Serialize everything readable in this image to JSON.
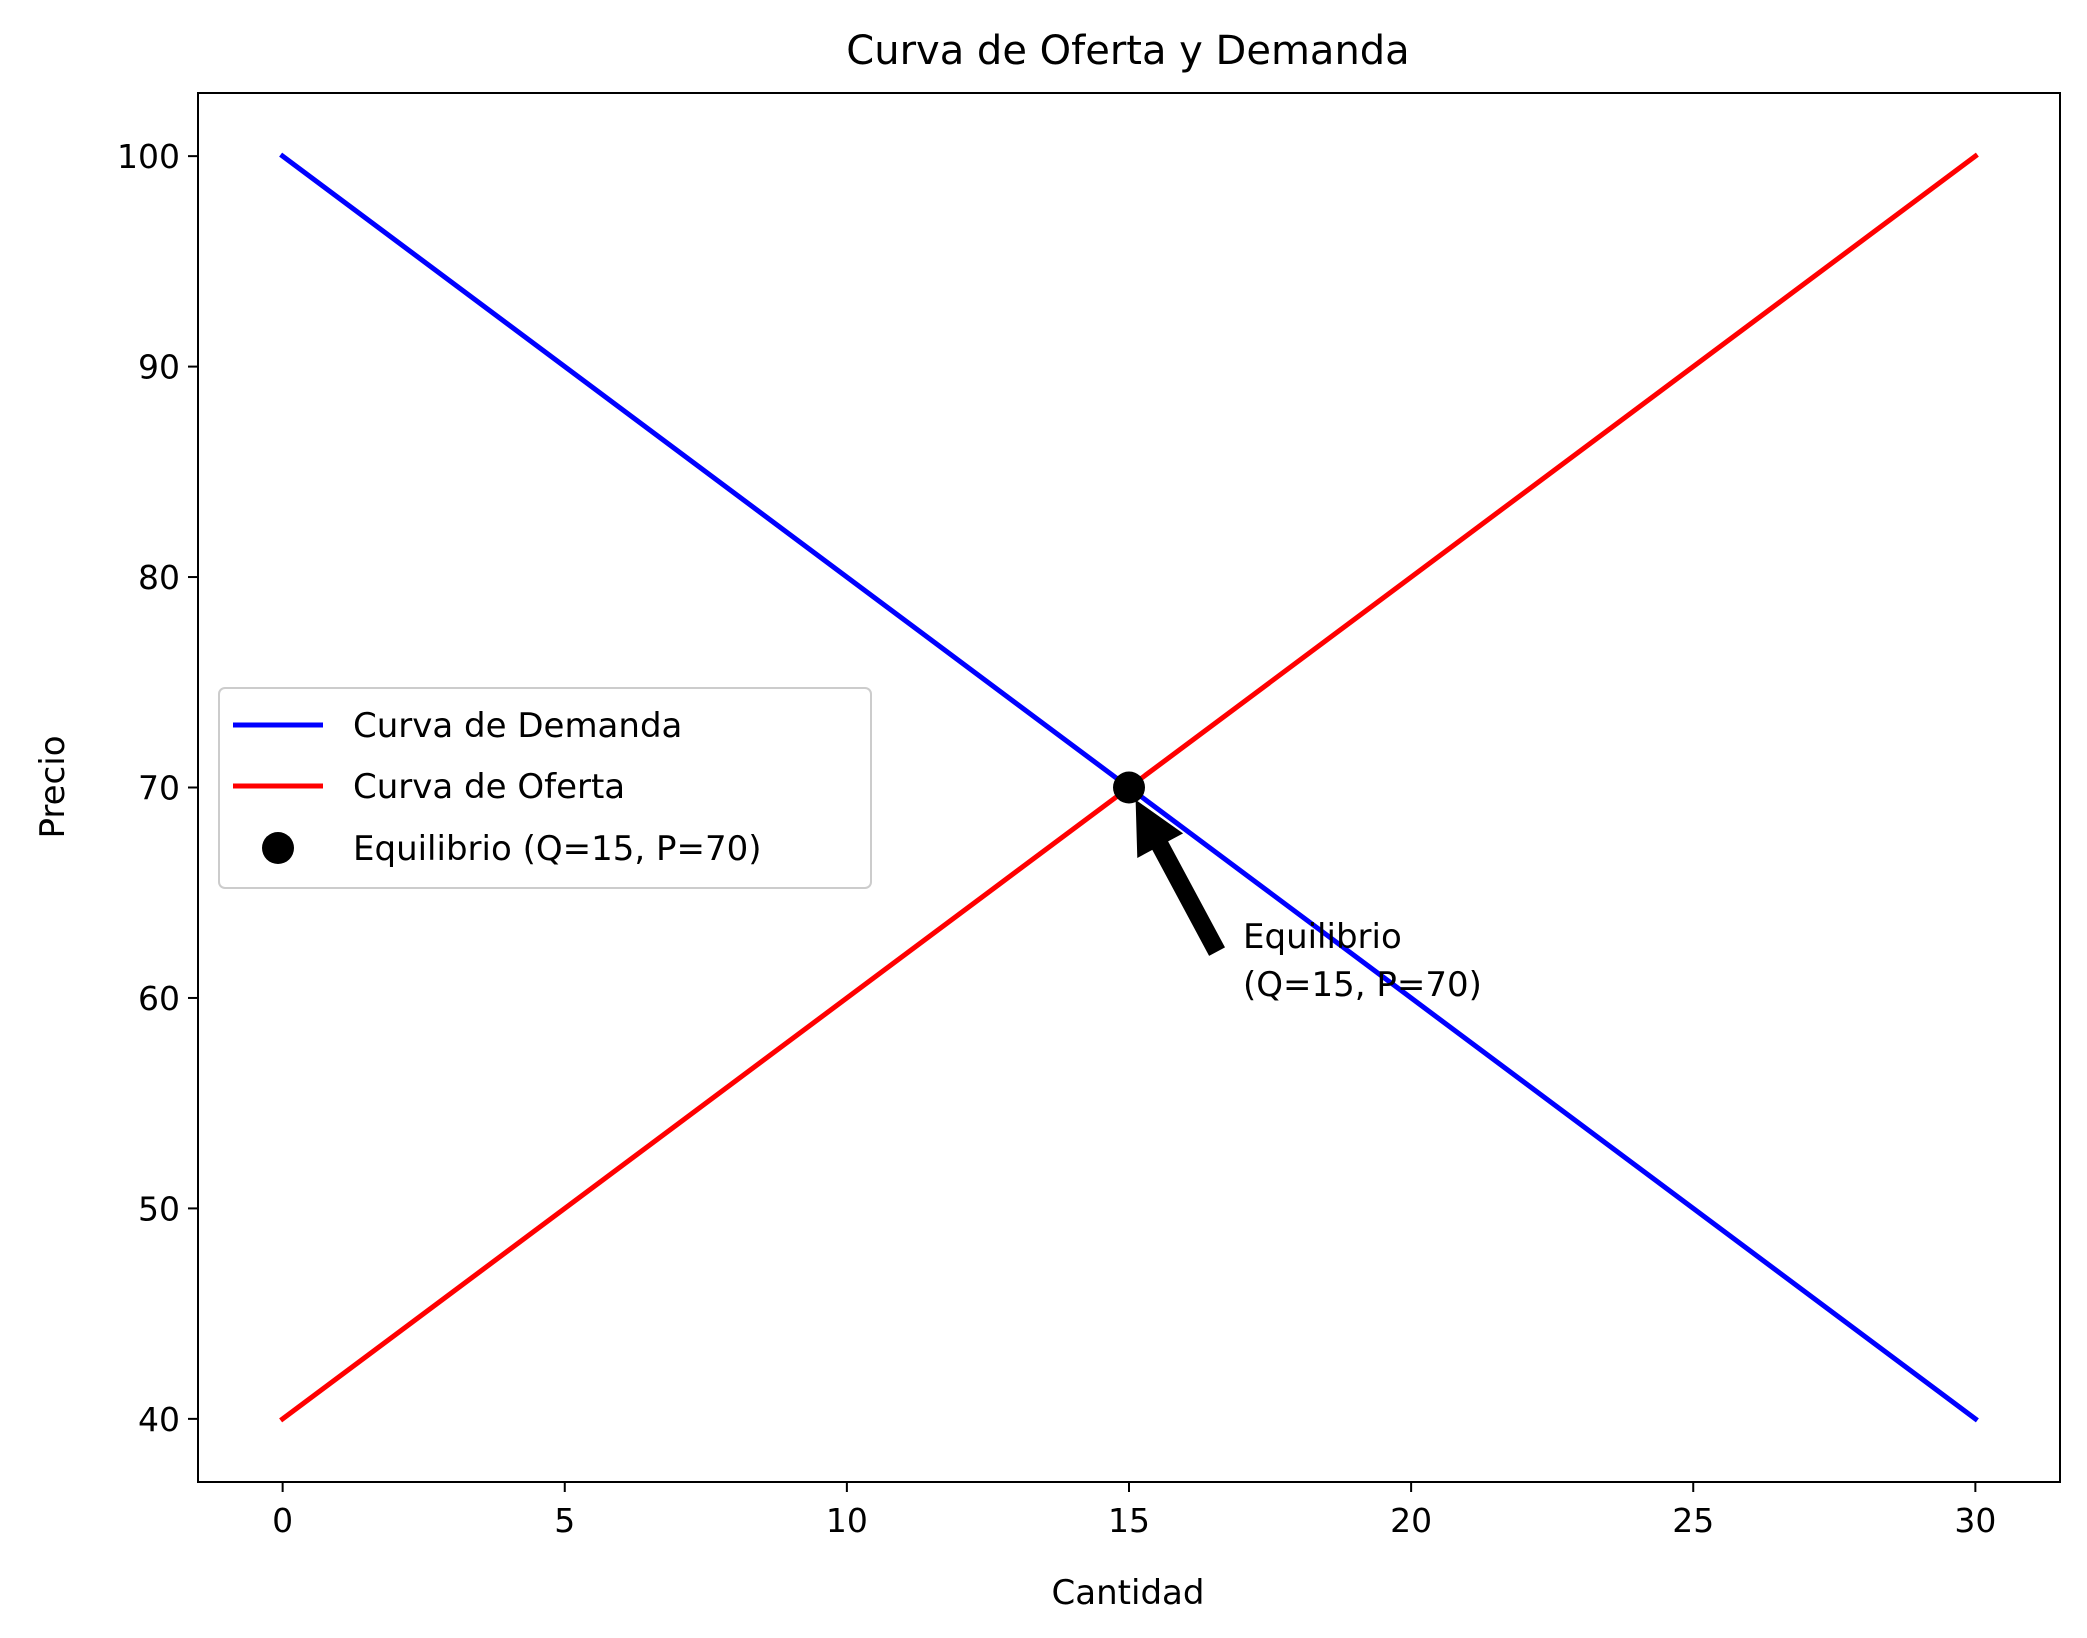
{
  "chart_data": {
    "type": "line",
    "title": "Curva de Oferta y Demanda",
    "xlabel": "Cantidad",
    "ylabel": "Precio",
    "xlim": [
      -1.5,
      31.5
    ],
    "ylim": [
      37,
      103
    ],
    "xticks": [
      0,
      5,
      10,
      15,
      20,
      25,
      30
    ],
    "xtick_labels": [
      "0",
      "5",
      "10",
      "15",
      "20",
      "25",
      "30"
    ],
    "yticks": [
      40,
      50,
      60,
      70,
      80,
      90,
      100
    ],
    "ytick_labels": [
      "40",
      "50",
      "60",
      "70",
      "80",
      "90",
      "100"
    ],
    "grid": false,
    "legend_position": "center-left",
    "series": [
      {
        "name": "Curva de Demanda",
        "color": "#0000ff",
        "x": [
          0,
          30
        ],
        "y": [
          100,
          40
        ]
      },
      {
        "name": "Curva de Oferta",
        "color": "#ff0000",
        "x": [
          0,
          30
        ],
        "y": [
          40,
          100
        ]
      }
    ],
    "points": [
      {
        "name": "Equilibrio (Q=15, P=70)",
        "color": "#000000",
        "x": 15,
        "y": 70
      }
    ],
    "annotation": {
      "lines": [
        "Equilibrio",
        "(Q=15, P=70)"
      ],
      "xy": [
        15,
        70
      ],
      "xytext": [
        17,
        60
      ],
      "color": "#000000"
    }
  }
}
